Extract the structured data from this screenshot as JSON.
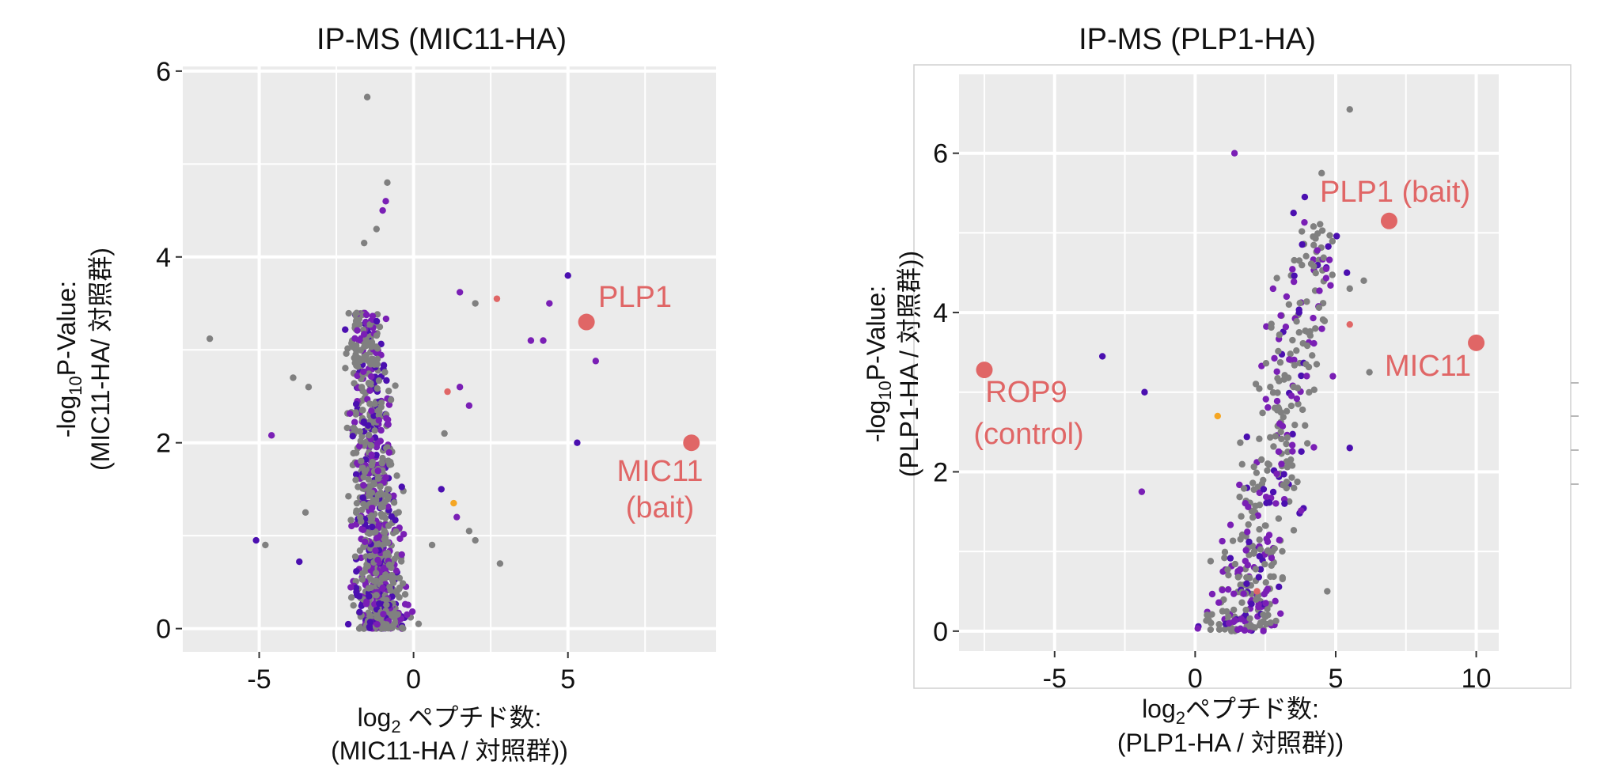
{
  "chart_data": [
    {
      "type": "scatter",
      "title": "IP-MS (MIC11-HA)",
      "xlabel_line1": "log",
      "xlabel_sub": "2",
      "xlabel_rest": " ペプチド数:",
      "xlabel_line2": "(MIC11-HA / 対照群))",
      "ylabel_line1_pre": "-log",
      "ylabel_line1_sub": "10",
      "ylabel_line1_post": "P-Value:",
      "ylabel_line2": "(MIC11-HA/ 対照群)",
      "xlim": [
        -7.5,
        9.8
      ],
      "ylim": [
        -0.25,
        6.05
      ],
      "xticks": [
        -5,
        0,
        5
      ],
      "xtick_labels": [
        "-5",
        "0",
        "5"
      ],
      "yticks": [
        0,
        2,
        4,
        6
      ],
      "ytick_labels": [
        "0",
        "2",
        "4",
        "6"
      ],
      "colors": {
        "grey": "#808080",
        "purple": "#7a1fb5",
        "indigo": "#4b0fb0",
        "pink": "#e06666",
        "orange": "#f5a623",
        "bg": "#ebebeb",
        "grid": "#ffffff"
      },
      "cluster": {
        "x_center": -1.0,
        "x_spread": 0.55,
        "y_max": 3.4,
        "count": 900,
        "seed": 11,
        "slope": -0.18
      },
      "points": [
        {
          "x": -6.6,
          "y": 3.12,
          "c": "grey"
        },
        {
          "x": -5.1,
          "y": 0.95,
          "c": "indigo"
        },
        {
          "x": -4.8,
          "y": 0.9,
          "c": "grey"
        },
        {
          "x": -4.6,
          "y": 2.08,
          "c": "purple"
        },
        {
          "x": -3.9,
          "y": 2.7,
          "c": "grey"
        },
        {
          "x": -3.7,
          "y": 0.72,
          "c": "indigo"
        },
        {
          "x": -3.5,
          "y": 1.25,
          "c": "grey"
        },
        {
          "x": -3.4,
          "y": 2.6,
          "c": "grey"
        },
        {
          "x": -1.5,
          "y": 5.72,
          "c": "grey"
        },
        {
          "x": -0.85,
          "y": 4.8,
          "c": "grey"
        },
        {
          "x": -0.9,
          "y": 4.6,
          "c": "purple"
        },
        {
          "x": -1.0,
          "y": 4.5,
          "c": "purple"
        },
        {
          "x": -1.6,
          "y": 4.15,
          "c": "grey"
        },
        {
          "x": -1.2,
          "y": 4.3,
          "c": "grey"
        },
        {
          "x": 1.1,
          "y": 2.55,
          "c": "pink"
        },
        {
          "x": 1.5,
          "y": 2.6,
          "c": "purple"
        },
        {
          "x": 1.5,
          "y": 3.62,
          "c": "purple"
        },
        {
          "x": 2.0,
          "y": 3.5,
          "c": "grey"
        },
        {
          "x": 2.7,
          "y": 3.55,
          "c": "pink"
        },
        {
          "x": 2.8,
          "y": 0.7,
          "c": "grey"
        },
        {
          "x": 3.8,
          "y": 3.1,
          "c": "purple"
        },
        {
          "x": 4.2,
          "y": 3.1,
          "c": "purple"
        },
        {
          "x": 4.4,
          "y": 3.5,
          "c": "purple"
        },
        {
          "x": 5.0,
          "y": 3.8,
          "c": "indigo"
        },
        {
          "x": 5.3,
          "y": 2.0,
          "c": "indigo"
        },
        {
          "x": 5.9,
          "y": 2.88,
          "c": "purple"
        },
        {
          "x": 1.3,
          "y": 1.35,
          "c": "orange"
        },
        {
          "x": 1.4,
          "y": 1.2,
          "c": "purple"
        },
        {
          "x": 1.8,
          "y": 1.05,
          "c": "grey"
        },
        {
          "x": 2.0,
          "y": 0.95,
          "c": "grey"
        },
        {
          "x": 0.9,
          "y": 1.5,
          "c": "indigo"
        },
        {
          "x": 1.0,
          "y": 2.1,
          "c": "grey"
        },
        {
          "x": 1.8,
          "y": 2.4,
          "c": "purple"
        },
        {
          "x": 0.6,
          "y": 0.9,
          "c": "grey"
        }
      ],
      "highlights": [
        {
          "x": 5.6,
          "y": 3.3,
          "label": "PLP1",
          "label2": ""
        },
        {
          "x": 9.0,
          "y": 2.0,
          "label": "MIC11",
          "label2": "(bait)"
        }
      ]
    },
    {
      "type": "scatter",
      "title": "IP-MS (PLP1-HA)",
      "xlabel_line1": "log",
      "xlabel_sub": "2",
      "xlabel_rest": "ペプチド数:",
      "xlabel_line2": "(PLP1-HA / 対照群))",
      "ylabel_line1_pre": "-log",
      "ylabel_line1_sub": "10",
      "ylabel_line1_post": "P-Value:",
      "ylabel_line2": "(PLP1-HA / 対照群))",
      "xlim": [
        -8.4,
        10.8
      ],
      "ylim": [
        -0.25,
        7.0
      ],
      "xticks": [
        -5,
        0,
        5,
        10
      ],
      "xtick_labels": [
        "-5",
        "0",
        "5",
        "10"
      ],
      "yticks": [
        0,
        2,
        4,
        6
      ],
      "ytick_labels": [
        "0",
        "2",
        "4",
        "6"
      ],
      "colors": {
        "grey": "#808080",
        "purple": "#7a1fb5",
        "indigo": "#4b0fb0",
        "pink": "#e06666",
        "orange": "#f5a623",
        "bg": "#ebebeb",
        "grid": "#ffffff"
      },
      "cluster": {
        "x_center": 1.6,
        "x_spread": 0.9,
        "y_max": 5.2,
        "count": 420,
        "seed": 29,
        "slope": 0.55
      },
      "points": [
        {
          "x": -3.3,
          "y": 3.45,
          "c": "indigo"
        },
        {
          "x": -1.8,
          "y": 3.0,
          "c": "indigo"
        },
        {
          "x": -1.9,
          "y": 1.75,
          "c": "purple"
        },
        {
          "x": 1.4,
          "y": 6.0,
          "c": "purple"
        },
        {
          "x": 5.5,
          "y": 6.55,
          "c": "grey"
        },
        {
          "x": 4.5,
          "y": 5.75,
          "c": "grey"
        },
        {
          "x": 3.9,
          "y": 5.45,
          "c": "indigo"
        },
        {
          "x": 3.5,
          "y": 5.25,
          "c": "indigo"
        },
        {
          "x": 5.5,
          "y": 4.3,
          "c": "grey"
        },
        {
          "x": 6.0,
          "y": 4.4,
          "c": "grey"
        },
        {
          "x": 6.2,
          "y": 3.25,
          "c": "grey"
        },
        {
          "x": 5.5,
          "y": 2.3,
          "c": "indigo"
        },
        {
          "x": 4.7,
          "y": 0.5,
          "c": "grey"
        },
        {
          "x": 0.8,
          "y": 2.7,
          "c": "orange"
        },
        {
          "x": 5.5,
          "y": 3.85,
          "c": "pink"
        },
        {
          "x": 2.2,
          "y": 0.5,
          "c": "pink"
        },
        {
          "x": 5.4,
          "y": 4.5,
          "c": "indigo"
        },
        {
          "x": 4.9,
          "y": 3.2,
          "c": "purple"
        }
      ],
      "highlights": [
        {
          "x": 6.9,
          "y": 5.15,
          "label": "PLP1 (bait)",
          "label2": ""
        },
        {
          "x": 10.0,
          "y": 3.62,
          "label": "MIC11",
          "label2": ""
        },
        {
          "x": -7.5,
          "y": 3.28,
          "label": "ROP9",
          "label2": "(control)"
        }
      ]
    }
  ]
}
